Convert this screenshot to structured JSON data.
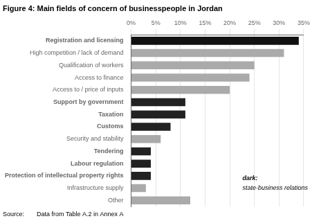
{
  "chart_data": {
    "type": "bar",
    "orientation": "horizontal",
    "title": "Figure 4: Main fields of concern of businesspeople in Jordan",
    "source": "Source:  Data from Table A.2 in Annex A",
    "annotations": [
      "dark:",
      "state-business relations"
    ],
    "categories": [
      "Other",
      "Infrastructure supply",
      "Protection of intellectual property rights",
      "Labour regulation",
      "Tendering",
      "Security and stability",
      "Customs",
      "Taxation",
      "Support by government",
      "Access to / price of inputs",
      "Access to finance",
      "Qualification of workers",
      "High competition / lack of demand",
      "Registration and licensing"
    ],
    "values": [
      12,
      3,
      4,
      4,
      4,
      6,
      8,
      11,
      11,
      20,
      24,
      25,
      31,
      34
    ],
    "colors": [
      "#aaaaaa",
      "#aaaaaa",
      "#222222",
      "#222222",
      "#222222",
      "#aaaaaa",
      "#222222",
      "#222222",
      "#222222",
      "#aaaaaa",
      "#aaaaaa",
      "#aaaaaa",
      "#aaaaaa",
      "#111111"
    ],
    "xlim": [
      0,
      35
    ],
    "xticks": [
      {
        "value": 0,
        "label": "0%"
      },
      {
        "value": 5,
        "label": "5%"
      },
      {
        "value": 10,
        "label": "10%"
      },
      {
        "value": 15,
        "label": "15%"
      },
      {
        "value": 20,
        "label": "20%"
      },
      {
        "value": 25,
        "label": "25%"
      },
      {
        "value": 30,
        "label": "30%"
      },
      {
        "value": 35,
        "label": "35%"
      }
    ],
    "grid": true
  }
}
